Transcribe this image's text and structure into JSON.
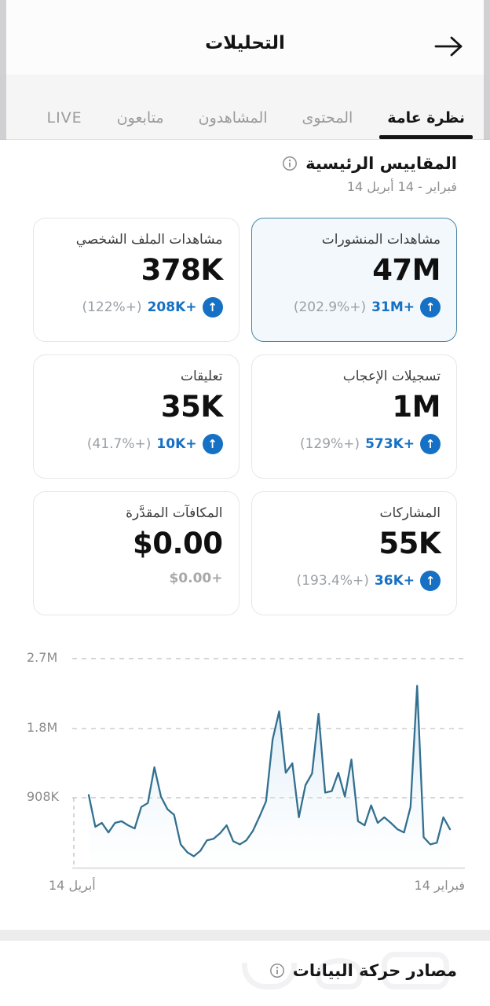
{
  "header": {
    "title": "التحليلات"
  },
  "tabs": [
    {
      "label": "نظرة عامة",
      "active": true
    },
    {
      "label": "المحتوى",
      "active": false
    },
    {
      "label": "المشاهدون",
      "active": false
    },
    {
      "label": "متابعون",
      "active": false
    },
    {
      "label": "LIVE",
      "active": false
    }
  ],
  "metrics": {
    "title": "المقاييس الرئيسية",
    "date_range": "14 فبراير - 14 أبريل",
    "cards": [
      {
        "label": "مشاهدات المنشورات",
        "value": "47M",
        "change": "+31M",
        "change_pct": "(+202.9%)",
        "selected": true
      },
      {
        "label": "مشاهدات الملف الشخصي",
        "value": "378K",
        "change": "+208K",
        "change_pct": "(+122%)",
        "selected": false
      },
      {
        "label": "تسجيلات الإعجاب",
        "value": "1M",
        "change": "+573K",
        "change_pct": "(+129%)",
        "selected": false
      },
      {
        "label": "تعليقات",
        "value": "35K",
        "change": "+10K",
        "change_pct": "(+41.7%)",
        "selected": false
      },
      {
        "label": "المشاركات",
        "value": "55K",
        "change": "+36K",
        "change_pct": "(+193.4%)",
        "selected": false
      },
      {
        "label": "المكافآت المقدَّرة",
        "value": "$0.00",
        "change": "+$0.00",
        "change_pct": "",
        "selected": false
      }
    ],
    "up_arrow_glyph": "↑"
  },
  "chart_data": {
    "type": "area",
    "title": "",
    "xlabel": "",
    "ylabel": "",
    "x_axis_reversed_rtl": true,
    "x_start_label": "14 فبراير",
    "x_end_label": "14 أبريل",
    "y_ticks": [
      {
        "label": "2.7M",
        "value": 2700000
      },
      {
        "label": "1.8M",
        "value": 1800000
      },
      {
        "label": "908K",
        "value": 908000
      }
    ],
    "grid": "dashed-horizontal",
    "line_color": "#33708f",
    "values": [
      502000,
      656000,
      328000,
      307000,
      400000,
      2350000,
      789000,
      461000,
      502000,
      584000,
      656000,
      584000,
      810000,
      553000,
      605000,
      1400000,
      922000,
      1230000,
      994000,
      974000,
      1990000,
      1220000,
      1070000,
      656000,
      1350000,
      1230000,
      2020000,
      1660000,
      861000,
      666000,
      482000,
      359000,
      307000,
      348000,
      553000,
      451000,
      379000,
      359000,
      225000,
      154000,
      205000,
      307000,
      687000,
      758000,
      922000,
      1300000,
      840000,
      789000,
      512000,
      553000,
      605000,
      584000,
      461000,
      584000,
      533000,
      943000
    ]
  },
  "traffic_sources": {
    "title": "مصادر حركة البيانات"
  },
  "colors": {
    "accent_blue": "#1670c4",
    "chart_line": "#33708f",
    "selected_card_bg": "#f2f8fb",
    "selected_card_border": "#4886a3",
    "muted_text": "#9aa0a6"
  }
}
